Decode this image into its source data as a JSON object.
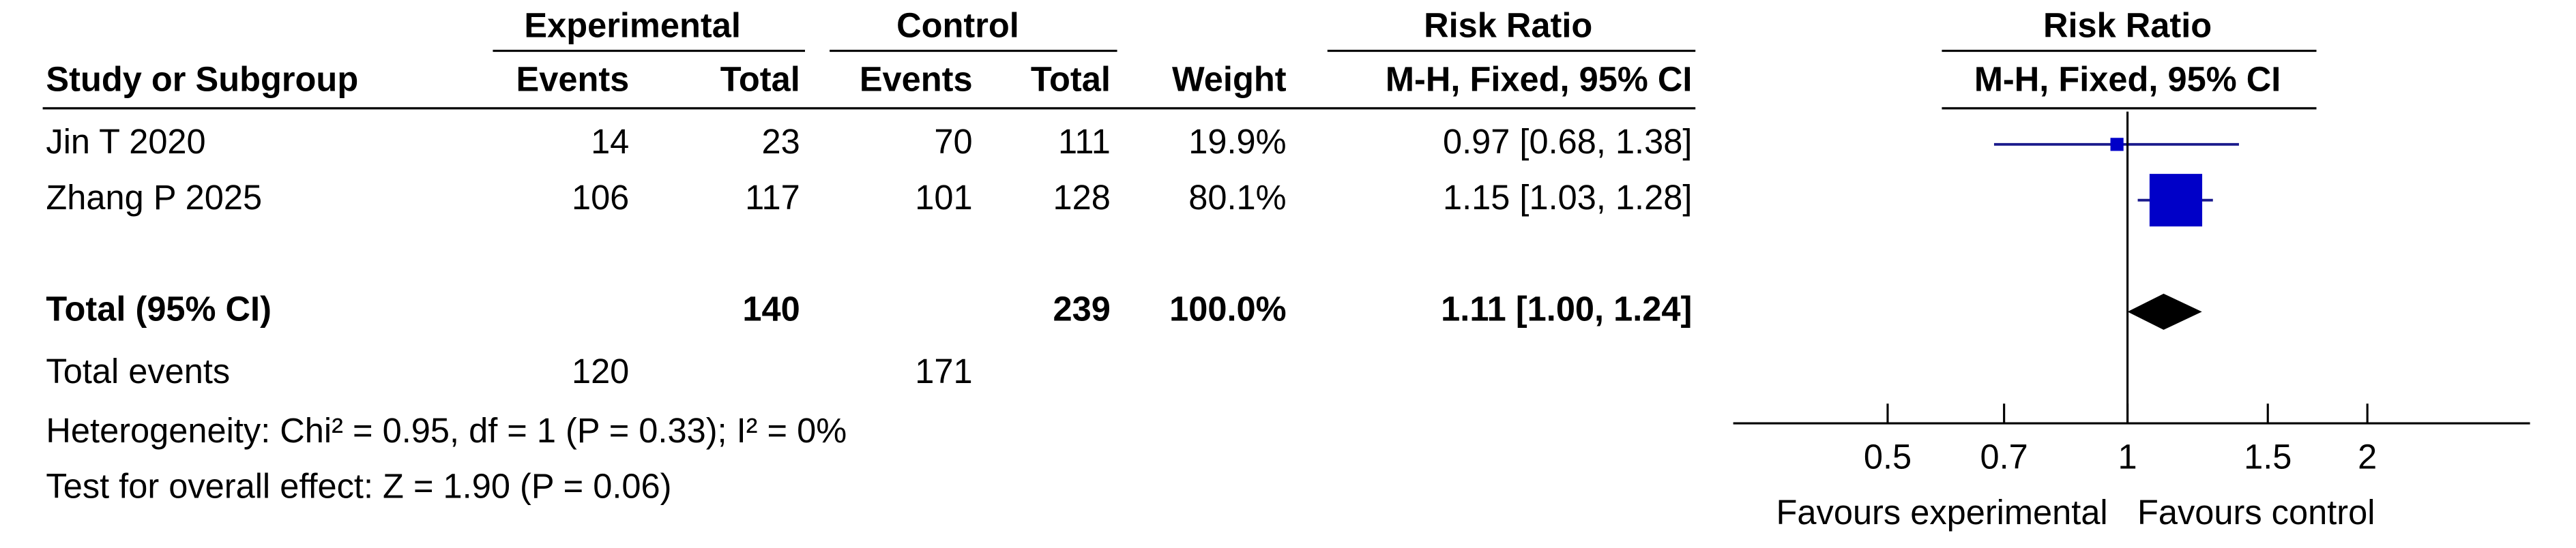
{
  "chart_data": {
    "type": "forest",
    "column_groups": [
      "Experimental",
      "Control",
      "Risk Ratio"
    ],
    "columns": [
      "Study or Subgroup",
      "Events",
      "Total",
      "Events",
      "Total",
      "Weight",
      "M-H, Fixed, 95% CI"
    ],
    "plot_header": [
      "Risk Ratio",
      "M-H, Fixed, 95% CI"
    ],
    "studies": [
      {
        "name": "Jin T 2020",
        "exp_events": 14,
        "exp_total": 23,
        "ctrl_events": 70,
        "ctrl_total": 111,
        "weight": 19.9,
        "weight_label": "19.9%",
        "rr": 0.97,
        "ci": [
          0.68,
          1.38
        ],
        "ci_label": "0.97 [0.68, 1.38]"
      },
      {
        "name": "Zhang P 2025",
        "exp_events": 106,
        "exp_total": 117,
        "ctrl_events": 101,
        "ctrl_total": 128,
        "weight": 80.1,
        "weight_label": "80.1%",
        "rr": 1.15,
        "ci": [
          1.03,
          1.28
        ],
        "ci_label": "1.15 [1.03, 1.28]"
      }
    ],
    "total": {
      "name": "Total (95% CI)",
      "exp_total": 140,
      "ctrl_total": 239,
      "weight": 100.0,
      "weight_label": "100.0%",
      "rr": 1.11,
      "ci": [
        1.0,
        1.24
      ],
      "ci_label": "1.11 [1.00, 1.24]"
    },
    "total_events": {
      "name": "Total events",
      "exp": 120,
      "ctrl": 171
    },
    "heterogeneity": "Heterogeneity: Chi² = 0.95, df = 1 (P = 0.33); I² = 0%",
    "overall_effect": "Test for overall effect: Z = 1.90 (P = 0.06)",
    "log_x": true,
    "xlim": [
      0.32,
      3.2
    ],
    "xticks": [
      0.5,
      0.7,
      1,
      1.5,
      2
    ],
    "x_labels": [
      "Favours experimental",
      "Favours control"
    ],
    "square_color": "#0000c8",
    "line_color": "#1a1a8c",
    "diamond_color": "#000000"
  }
}
